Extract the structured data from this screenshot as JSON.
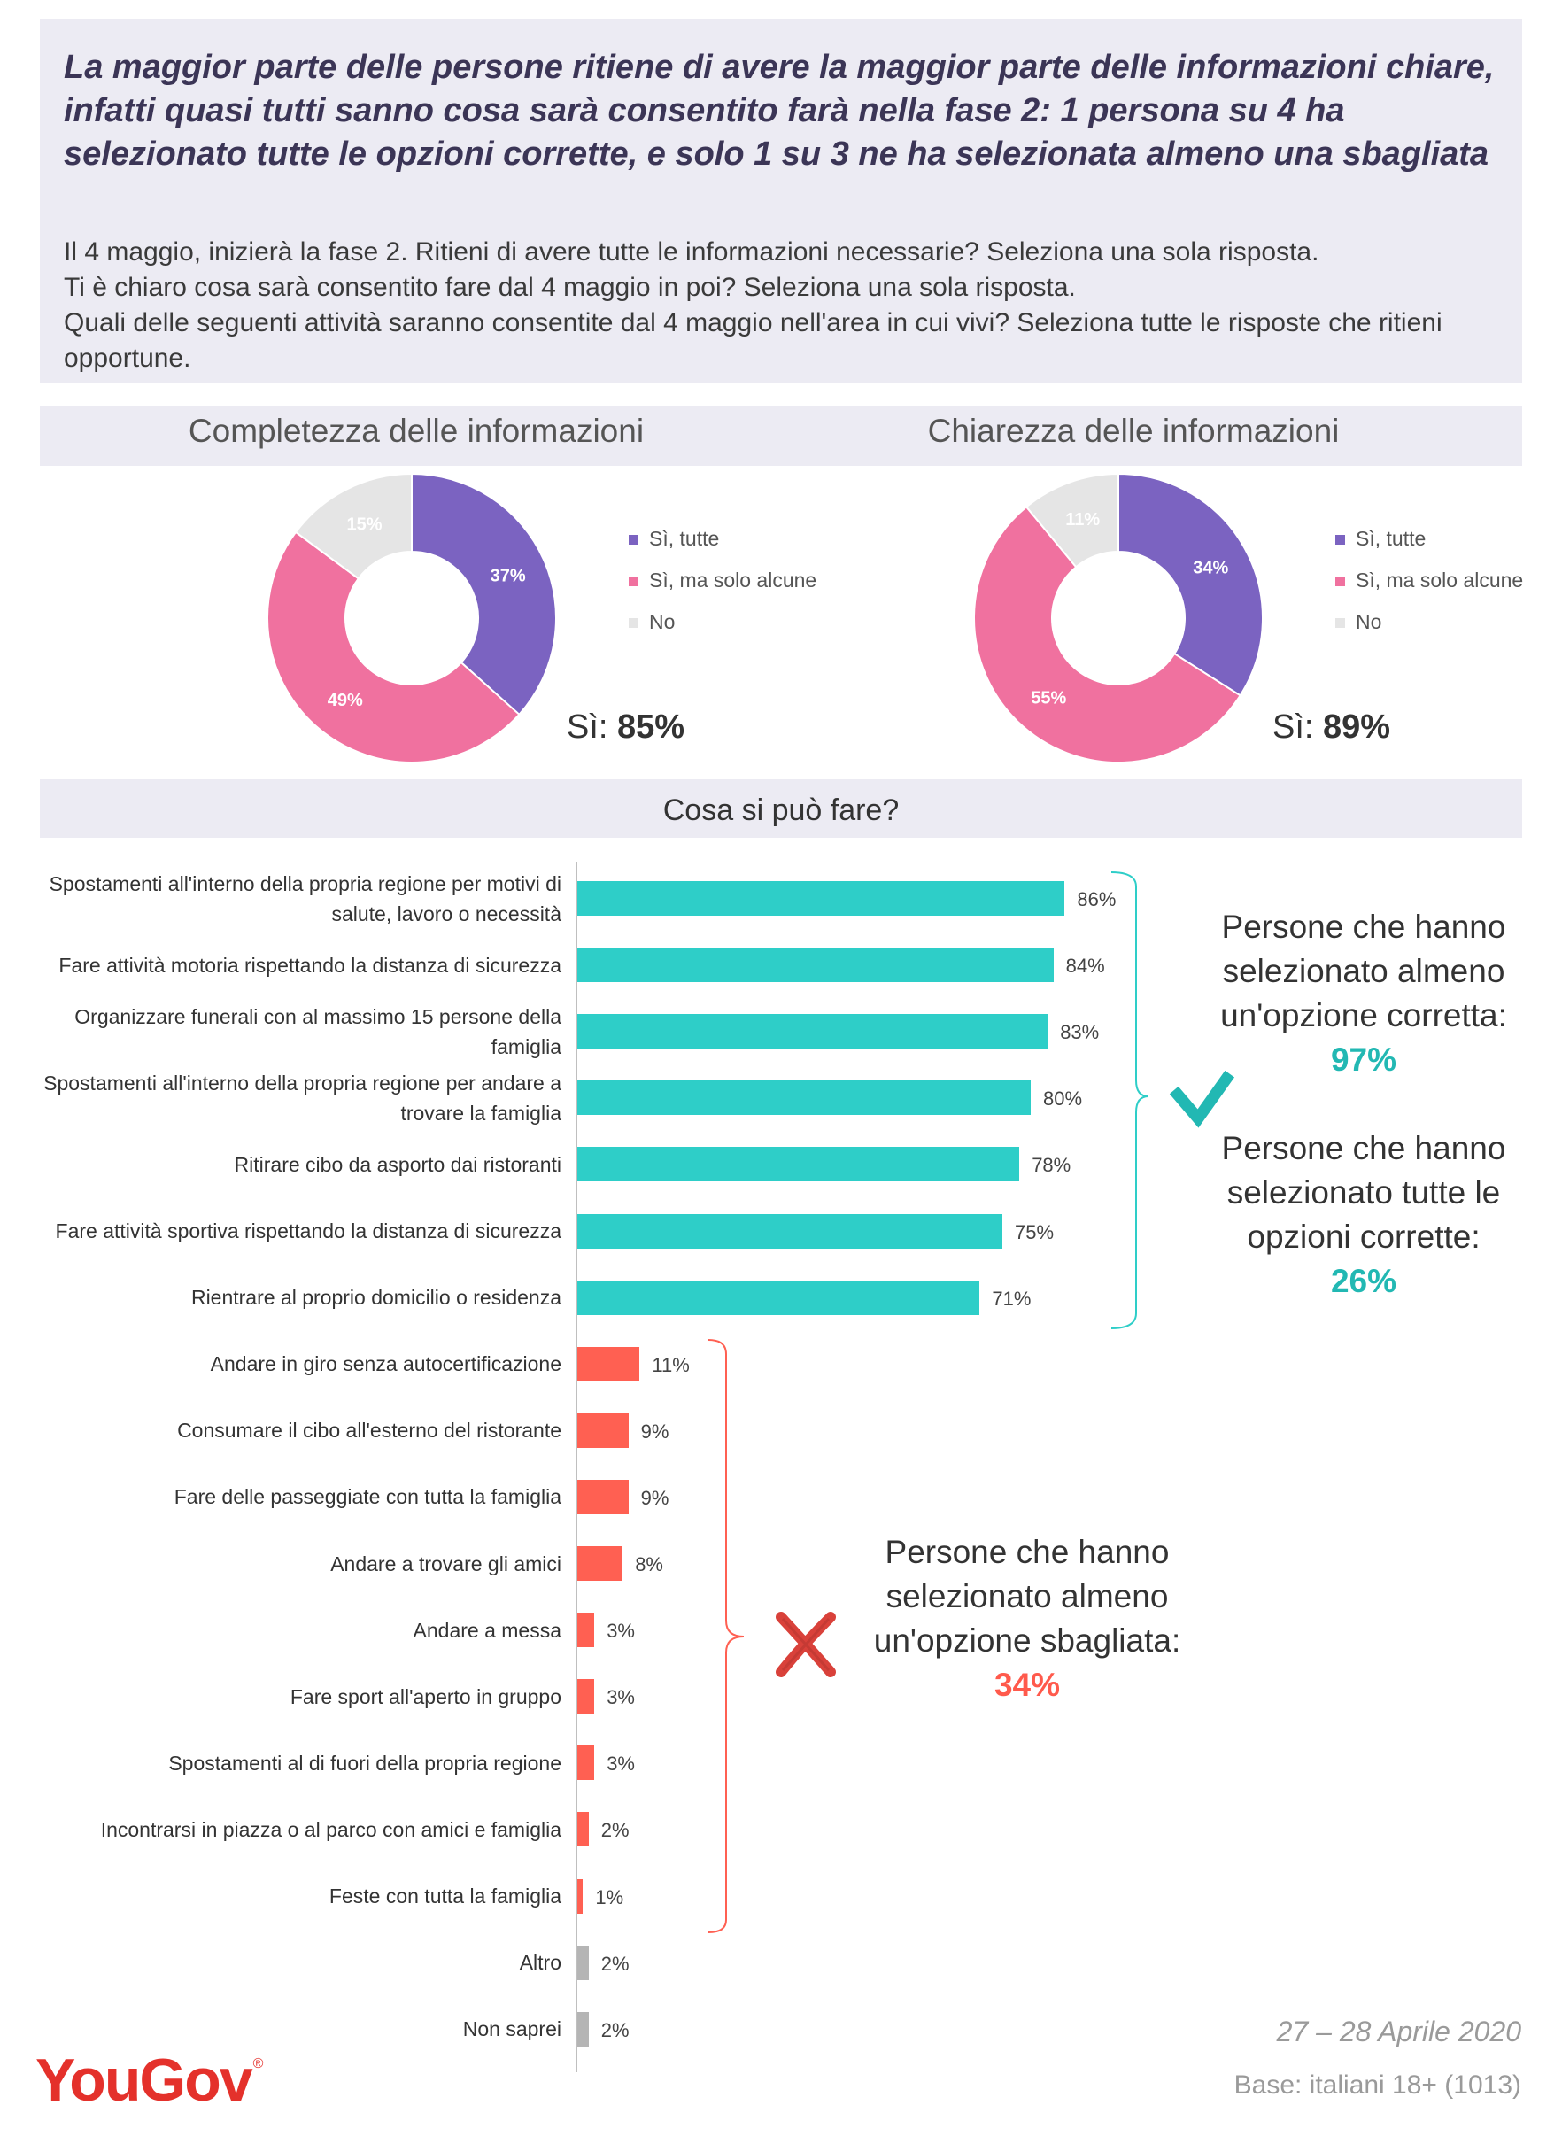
{
  "header": {
    "headline": "La maggior parte delle persone ritiene di avere la maggior parte delle informazioni chiare, infatti quasi tutti sanno cosa sarà consentito farà nella fase 2: 1 persona su 4 ha selezionato tutte le opzioni corrette, e solo 1 su 3 ne ha selezionata almeno una sbagliata",
    "question_1": "Il 4 maggio, inizierà la fase 2. Ritieni di avere tutte le informazioni necessarie? Seleziona una sola risposta.",
    "question_2": "Ti è chiaro cosa sarà consentito fare dal 4 maggio in poi? Seleziona una sola risposta.",
    "question_3": "Quali delle seguenti attività saranno consentite dal 4 maggio nell'area in cui vivi? Seleziona tutte le risposte che ritieni opportune."
  },
  "donut_section": {
    "left_title": "Completezza delle informazioni",
    "right_title": "Chiarezza delle informazioni",
    "left_total_label": "Sì: ",
    "left_total_value": "85%",
    "right_total_label": "Sì: ",
    "right_total_value": "89%"
  },
  "colors": {
    "si_tutte": "#7b63c1",
    "si_alcune": "#f0719f",
    "no": "#e5e5e5",
    "correct": "#2ecec8",
    "wrong": "#ff6052",
    "other": "#b5b5b5",
    "correct_text": "#22b8b3",
    "wrong_text": "#ff5a4c"
  },
  "bar_section": {
    "title": "Cosa si può fare?"
  },
  "callouts": {
    "almeno_corretta_text": "Persone che hanno selezionato almeno un'opzione corretta:",
    "almeno_corretta_value": "97%",
    "tutte_corrette_text": "Persone che hanno selezionato tutte le opzioni corrette:",
    "tutte_corrette_value": "26%",
    "almeno_sbagliata_text": "Persone che hanno selezionato almeno un'opzione sbagliata:",
    "almeno_sbagliata_value": "34%"
  },
  "footer": {
    "date": "27 – 28 Aprile 2020",
    "base": "Base: italiani 18+ (1013)",
    "logo": "YouGov",
    "logo_mark": "®"
  },
  "chart_data": [
    {
      "type": "pie",
      "title": "Completezza delle informazioni",
      "categories": [
        "Sì, tutte",
        "Sì, ma solo alcune",
        "No"
      ],
      "values": [
        37,
        49,
        15
      ],
      "value_labels": [
        "37%",
        "49%",
        "15%"
      ]
    },
    {
      "type": "pie",
      "title": "Chiarezza delle informazioni",
      "categories": [
        "Sì, tutte",
        "Sì, ma solo alcune",
        "No"
      ],
      "values": [
        34,
        55,
        11
      ],
      "value_labels": [
        "34%",
        "55%",
        "11%"
      ]
    },
    {
      "type": "bar",
      "orientation": "horizontal",
      "title": "Cosa si può fare?",
      "xlim": [
        0,
        100
      ],
      "bars": [
        {
          "label": "Spostamenti all'interno della propria regione per motivi di salute, lavoro o necessità",
          "value": 86,
          "value_label": "86%",
          "group": "correct"
        },
        {
          "label": "Fare attività motoria rispettando la distanza di sicurezza",
          "value": 84,
          "value_label": "84%",
          "group": "correct"
        },
        {
          "label": "Organizzare funerali con al massimo 15 persone della famiglia",
          "value": 83,
          "value_label": "83%",
          "group": "correct"
        },
        {
          "label": "Spostamenti all'interno della propria regione per andare a trovare la famiglia",
          "value": 80,
          "value_label": "80%",
          "group": "correct"
        },
        {
          "label": "Ritirare cibo da asporto dai ristoranti",
          "value": 78,
          "value_label": "78%",
          "group": "correct"
        },
        {
          "label": "Fare attività sportiva rispettando la distanza di sicurezza",
          "value": 75,
          "value_label": "75%",
          "group": "correct"
        },
        {
          "label": "Rientrare al proprio domicilio o residenza",
          "value": 71,
          "value_label": "71%",
          "group": "correct"
        },
        {
          "label": "Andare in giro senza autocertificazione",
          "value": 11,
          "value_label": "11%",
          "group": "wrong"
        },
        {
          "label": "Consumare il cibo all'esterno del ristorante",
          "value": 9,
          "value_label": "9%",
          "group": "wrong"
        },
        {
          "label": "Fare delle passeggiate con tutta la famiglia",
          "value": 9,
          "value_label": "9%",
          "group": "wrong"
        },
        {
          "label": "Andare a trovare gli amici",
          "value": 8,
          "value_label": "8%",
          "group": "wrong"
        },
        {
          "label": "Andare a messa",
          "value": 3,
          "value_label": "3%",
          "group": "wrong"
        },
        {
          "label": "Fare sport all'aperto in gruppo",
          "value": 3,
          "value_label": "3%",
          "group": "wrong"
        },
        {
          "label": "Spostamenti al di fuori della propria regione",
          "value": 3,
          "value_label": "3%",
          "group": "wrong"
        },
        {
          "label": "Incontrarsi in piazza o al parco con amici e famiglia",
          "value": 2,
          "value_label": "2%",
          "group": "wrong"
        },
        {
          "label": "Feste con tutta la famiglia",
          "value": 1,
          "value_label": "1%",
          "group": "wrong"
        },
        {
          "label": "Altro",
          "value": 2,
          "value_label": "2%",
          "group": "other"
        },
        {
          "label": "Non saprei",
          "value": 2,
          "value_label": "2%",
          "group": "other"
        }
      ]
    }
  ]
}
